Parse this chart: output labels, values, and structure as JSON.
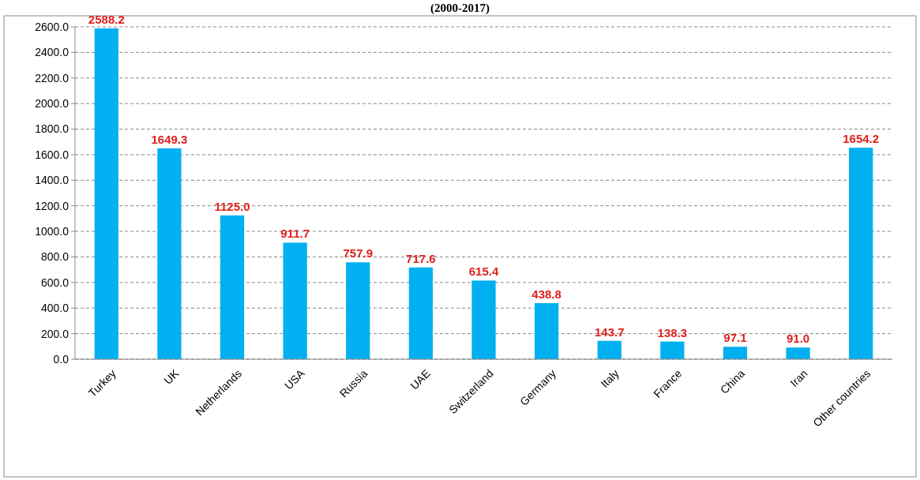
{
  "chart_data": {
    "type": "bar",
    "title": "(2000-2017)",
    "categories": [
      "Turkey",
      "UK",
      "Netherlands",
      "USA",
      "Russia",
      "UAE",
      "Switzerland",
      "Germany",
      "Italy",
      "France",
      "China",
      "Iran",
      "Other countries"
    ],
    "values": [
      2588.2,
      1649.3,
      1125.0,
      911.7,
      757.9,
      717.6,
      615.4,
      438.8,
      143.7,
      138.3,
      97.1,
      91.0,
      1654.2
    ],
    "value_labels": [
      "2588.2",
      "1649.3",
      "1125.0",
      "911.7",
      "757.9",
      "717.6",
      "615.4",
      "438.8",
      "143.7",
      "138.3",
      "97.1",
      "91.0",
      "1654.2"
    ],
    "color": "#00b0f0",
    "ylim": [
      0,
      2600
    ],
    "yticks": [
      {
        "value": 0,
        "label": "0.0"
      },
      {
        "value": 200,
        "label": "200.0"
      },
      {
        "value": 400,
        "label": "400.0"
      },
      {
        "value": 600,
        "label": "600.0"
      },
      {
        "value": 800,
        "label": "800.0"
      },
      {
        "value": 1000,
        "label": "1000.0"
      },
      {
        "value": 1200,
        "label": "1200.0"
      },
      {
        "value": 1400,
        "label": "1400.0"
      },
      {
        "value": 1600,
        "label": "1600.0"
      },
      {
        "value": 1800,
        "label": "1800.0"
      },
      {
        "value": 2000,
        "label": "2000.0"
      },
      {
        "value": 2200,
        "label": "2200.0"
      },
      {
        "value": 2400,
        "label": "2400.0"
      },
      {
        "value": 2600,
        "label": "2600.0"
      }
    ],
    "grid": "y"
  }
}
